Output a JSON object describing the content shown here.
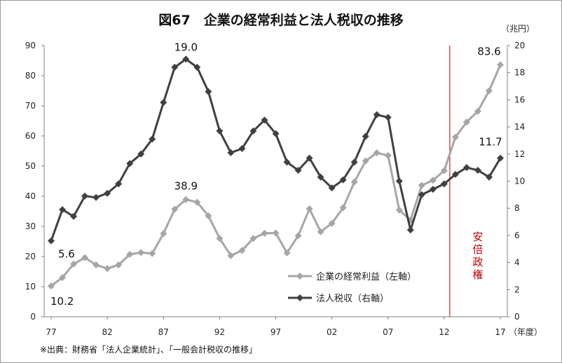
{
  "chart_data": {
    "type": "line",
    "title": "図67　企業の経常利益と法人税収の推移",
    "right_unit": "（兆円）",
    "x_unit": "（年度）",
    "x": [
      1977,
      1978,
      1979,
      1980,
      1981,
      1982,
      1983,
      1984,
      1985,
      1986,
      1987,
      1988,
      1989,
      1990,
      1991,
      1992,
      1993,
      1994,
      1995,
      1996,
      1997,
      1998,
      1999,
      2000,
      2001,
      2002,
      2003,
      2004,
      2005,
      2006,
      2007,
      2008,
      2009,
      2010,
      2011,
      2012,
      2013,
      2014,
      2015,
      2016,
      2017
    ],
    "x_tick_labels": [
      "77",
      "82",
      "87",
      "92",
      "97",
      "02",
      "07",
      "12",
      "17"
    ],
    "left_ylim": [
      0,
      90
    ],
    "left_ticks": [
      "0",
      "10",
      "20",
      "30",
      "40",
      "50",
      "60",
      "70",
      "80",
      "90"
    ],
    "right_ylim": [
      0,
      20
    ],
    "right_ticks": [
      "0",
      "2",
      "4",
      "6",
      "8",
      "10",
      "12",
      "14",
      "16",
      "18",
      "20"
    ],
    "series": [
      {
        "name": "企業の経常利益（左軸）",
        "axis": "left",
        "color": "#a6a6a6",
        "values": [
          10.2,
          13.0,
          17.5,
          19.6,
          17.2,
          16.0,
          17.2,
          20.7,
          21.3,
          21.0,
          27.6,
          35.7,
          38.9,
          38.0,
          33.5,
          26.0,
          20.3,
          22.0,
          26.0,
          27.7,
          27.8,
          21.2,
          26.9,
          35.8,
          28.2,
          31.0,
          36.2,
          44.7,
          51.7,
          54.4,
          53.5,
          35.4,
          32.1,
          43.6,
          45.3,
          48.5,
          59.6,
          64.6,
          68.2,
          75.0,
          83.6
        ]
      },
      {
        "name": "法人税収（右軸）",
        "axis": "right",
        "color": "#404040",
        "values": [
          5.6,
          7.9,
          7.4,
          8.9,
          8.8,
          9.1,
          9.8,
          11.3,
          12.0,
          13.1,
          15.8,
          18.4,
          19.0,
          18.4,
          16.6,
          13.7,
          12.1,
          12.4,
          13.7,
          14.5,
          13.5,
          11.4,
          10.8,
          11.7,
          10.3,
          9.5,
          10.1,
          11.4,
          13.3,
          14.9,
          14.7,
          10.0,
          6.4,
          9.0,
          9.4,
          9.8,
          10.5,
          11.0,
          10.8,
          10.3,
          11.7
        ]
      }
    ],
    "annotations": [
      {
        "text": "5.6",
        "series": 1,
        "index": 0
      },
      {
        "text": "19.0",
        "series": 1,
        "index": 12
      },
      {
        "text": "11.7",
        "series": 1,
        "index": 40
      },
      {
        "text": "10.2",
        "series": 0,
        "index": 0
      },
      {
        "text": "38.9",
        "series": 0,
        "index": 12
      },
      {
        "text": "83.6",
        "series": 0,
        "index": 40
      }
    ],
    "abe_line_year": 2012.5,
    "abe_label": "安倍政権",
    "legend_position": "bottom-right",
    "grid": false
  },
  "source": "※出典：財務省「法人企業統計」、「一般会計税収の推移」"
}
